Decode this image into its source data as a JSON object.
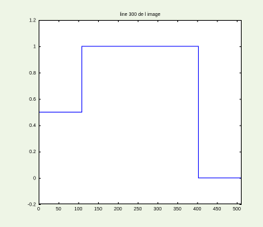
{
  "chart_data": {
    "type": "line",
    "title": "line 300 de l image",
    "xlabel": "",
    "ylabel": "",
    "xlim": [
      0,
      512
    ],
    "ylim": [
      -0.2,
      1.2
    ],
    "xticks": [
      0,
      50,
      100,
      150,
      200,
      250,
      300,
      350,
      400,
      450,
      500
    ],
    "yticks": [
      -0.2,
      0,
      0.2,
      0.4,
      0.6,
      0.8,
      1,
      1.2
    ],
    "grid": false,
    "series": [
      {
        "color": "#0000ff",
        "x": [
          0,
          109,
          109,
          403,
          403,
          512
        ],
        "y": [
          0.5,
          0.5,
          1,
          1,
          0,
          0
        ]
      }
    ]
  },
  "colors": {
    "figure_background": "#eef5e6",
    "axes_background": "#ffffff",
    "line": "#0000ff"
  }
}
